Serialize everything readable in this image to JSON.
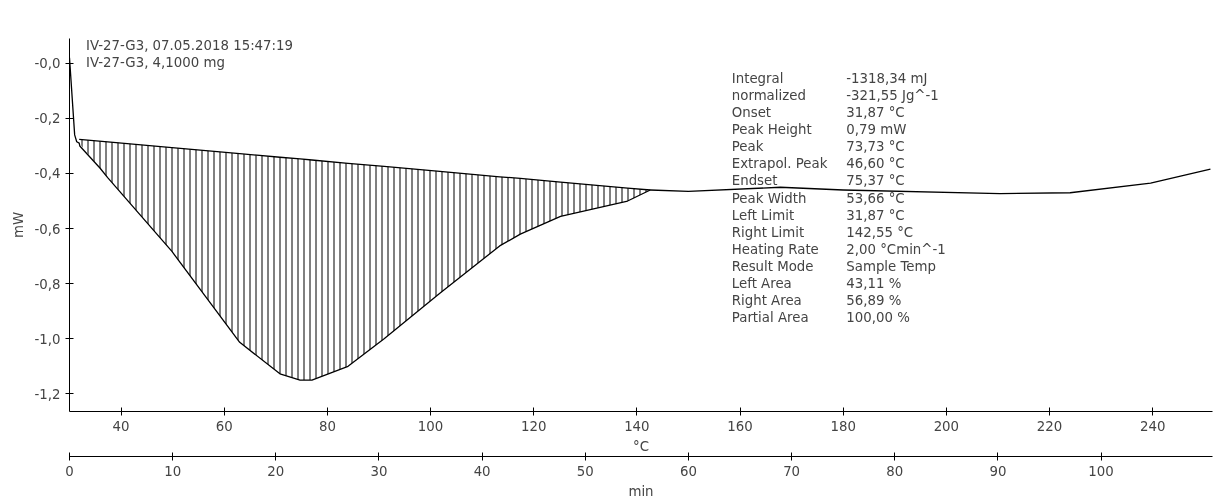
{
  "chart_data": {
    "type": "line",
    "xlabel": "min",
    "x2label": "°C",
    "ylabel": "mW",
    "xlim": [
      0,
      110.8
    ],
    "xticks": [
      0,
      10,
      20,
      30,
      40,
      50,
      60,
      70,
      80,
      90,
      100
    ],
    "x2lim": [
      30,
      251.6
    ],
    "x2ticks": [
      40,
      60,
      80,
      100,
      120,
      140,
      160,
      180,
      200,
      220,
      240
    ],
    "ylim": [
      -1.264,
      0.09
    ],
    "yticks": [
      {
        "value": -1.2,
        "label": "-1,2"
      },
      {
        "value": -1.0,
        "label": "-1,0"
      },
      {
        "value": -0.8,
        "label": "-0,8"
      },
      {
        "value": -0.6,
        "label": "-0,6"
      },
      {
        "value": -0.4,
        "label": "-0,4"
      },
      {
        "value": -0.2,
        "label": "-0,2"
      },
      {
        "value": 0.0,
        "label": "-0,0"
      }
    ],
    "grid": false,
    "series": [
      {
        "color": "#000000",
        "x": [
          0,
          0.5,
          0.7,
          0.94,
          1.0,
          2.95,
          3.7,
          9.93,
          16.5,
          20.4,
          22.35,
          23.5,
          27.0,
          30.5,
          35.9,
          41.7,
          43.7,
          47.6,
          54.1,
          56.3,
          60,
          68.9,
          75,
          90.2,
          97,
          104.8,
          110.6
        ],
        "values": [
          0.02,
          -0.26,
          -0.285,
          -0.29,
          -0.3,
          -0.38,
          -0.415,
          -0.683,
          -1.013,
          -1.127,
          -1.15,
          -1.15,
          -1.1,
          -1.0,
          -0.835,
          -0.663,
          -0.62,
          -0.556,
          -0.5,
          -0.46,
          -0.465,
          -0.45,
          -0.46,
          -0.473,
          -0.47,
          -0.435,
          -0.384
        ]
      },
      {
        "color": "#000000",
        "x": [
          0.94,
          3.7,
          9.93,
          16.5,
          20.4,
          22.35,
          23.5,
          27.0,
          30.5,
          35.9,
          41.7,
          43.7,
          47.6,
          54.1,
          56.3
        ],
        "values": [
          -0.276,
          -0.285,
          -0.306,
          -0.328,
          -0.341,
          -0.347,
          -0.351,
          -0.363,
          -0.374,
          -0.392,
          -0.412,
          -0.418,
          -0.431,
          -0.453,
          -0.46
        ],
        "upper": [
          -0.276,
          -0.285,
          -0.306,
          -0.328,
          -0.341,
          -0.347,
          -0.351,
          -0.363,
          -0.374,
          -0.392,
          -0.412,
          -0.418,
          -0.431,
          -0.453,
          -0.46
        ],
        "lower": [
          -0.29,
          -0.415,
          -0.683,
          -1.013,
          -1.127,
          -1.15,
          -1.15,
          -1.1,
          -1.0,
          -0.835,
          -0.663,
          -0.62,
          -0.556,
          -0.5,
          -0.46
        ]
      }
    ],
    "annotations": [
      "IV-27-G3, 07.05.2018 15:47:19",
      "IV-27-G3, 4,1000 mg",
      "Integral",
      "-1318,34 mJ",
      "  normalized",
      "-321,55 Jg^-1",
      "Onset",
      "31,87 °C",
      "Peak Height",
      "0,79 mW",
      "Peak",
      "73,73 °C",
      "Extrapol. Peak",
      "46,60 °C",
      "Endset",
      "75,37 °C",
      "Peak Width",
      "53,66 °C",
      "Left Limit",
      "31,87 °C",
      "Right Limit",
      "142,55 °C",
      "Heating Rate",
      "2,00 °Cmin^-1",
      "Result Mode",
      "Sample Temp",
      "Left Area",
      "43,11 %",
      "Right Area",
      "56,89 %",
      "Partial Area",
      "100,00 %"
    ]
  }
}
